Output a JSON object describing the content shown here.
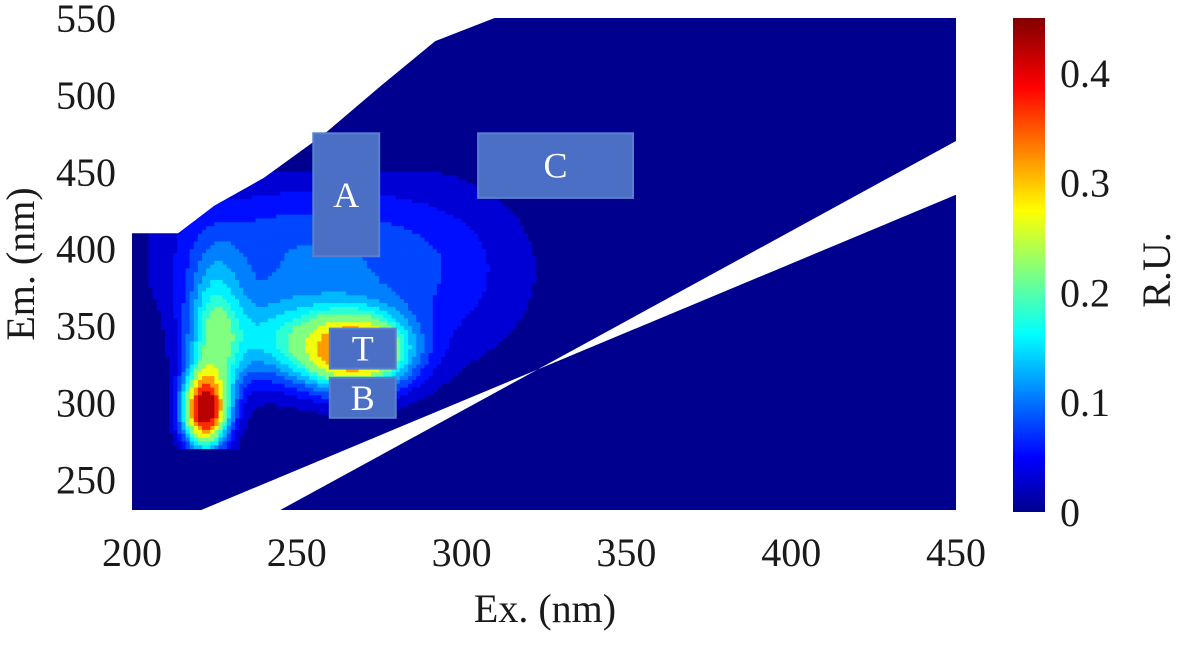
{
  "chart_data": {
    "type": "heatmap",
    "subtype": "filled contour (EEM fluorescence)",
    "xlabel": "Ex. (nm)",
    "ylabel": "Em. (nm)",
    "colorbar_label": "R.U.",
    "xlim": [
      200,
      450
    ],
    "ylim": [
      230,
      550
    ],
    "xticks": [
      "200",
      "250",
      "300",
      "350",
      "400",
      "450"
    ],
    "yticks": [
      "250",
      "300",
      "350",
      "400",
      "450",
      "500",
      "550"
    ],
    "colorbar": {
      "range": [
        0,
        0.45
      ],
      "ticks": [
        "0",
        "0.1",
        "0.2",
        "0.3",
        "0.4"
      ],
      "colormap": "jet"
    },
    "contour_levels": [
      0.025,
      0.05,
      0.075,
      0.1,
      0.125,
      0.15,
      0.175,
      0.2,
      0.25,
      0.3,
      0.35,
      0.4
    ],
    "peaks": [
      {
        "ex": 222,
        "em": 295,
        "intensity": 0.42
      },
      {
        "ex": 268,
        "em": 333,
        "intensity": 0.36
      }
    ],
    "regions": [
      {
        "label": "A",
        "ex_range": [
          255,
          275
        ],
        "em_range": [
          395,
          475
        ]
      },
      {
        "label": "C",
        "ex_range": [
          305,
          352
        ],
        "em_range": [
          433,
          475
        ]
      },
      {
        "label": "T",
        "ex_range": [
          260,
          280
        ],
        "em_range": [
          322,
          348
        ]
      },
      {
        "label": "B",
        "ex_range": [
          260,
          280
        ],
        "em_range": [
          290,
          316
        ]
      }
    ],
    "masked_regions": [
      {
        "name": "upper-left (Rayleigh, unmeasured)",
        "polyline": [
          [
            200,
            410
          ],
          [
            214,
            410
          ],
          [
            225,
            428
          ],
          [
            240,
            446
          ],
          [
            258,
            474
          ],
          [
            275,
            505
          ],
          [
            292,
            535
          ],
          [
            310,
            550
          ],
          [
            200,
            550
          ]
        ]
      },
      {
        "name": "scatter band",
        "lower_edge": [
          [
            221,
            230
          ],
          [
            450,
            435
          ]
        ],
        "upper_edge": [
          [
            245,
            230
          ],
          [
            450,
            470
          ]
        ]
      }
    ]
  },
  "colors": {
    "background": "#00008f",
    "box_fill": "#4a6fc4",
    "box_stroke": "#5a7fd0",
    "mask": "#ffffff",
    "text": "#1a1a1a"
  }
}
